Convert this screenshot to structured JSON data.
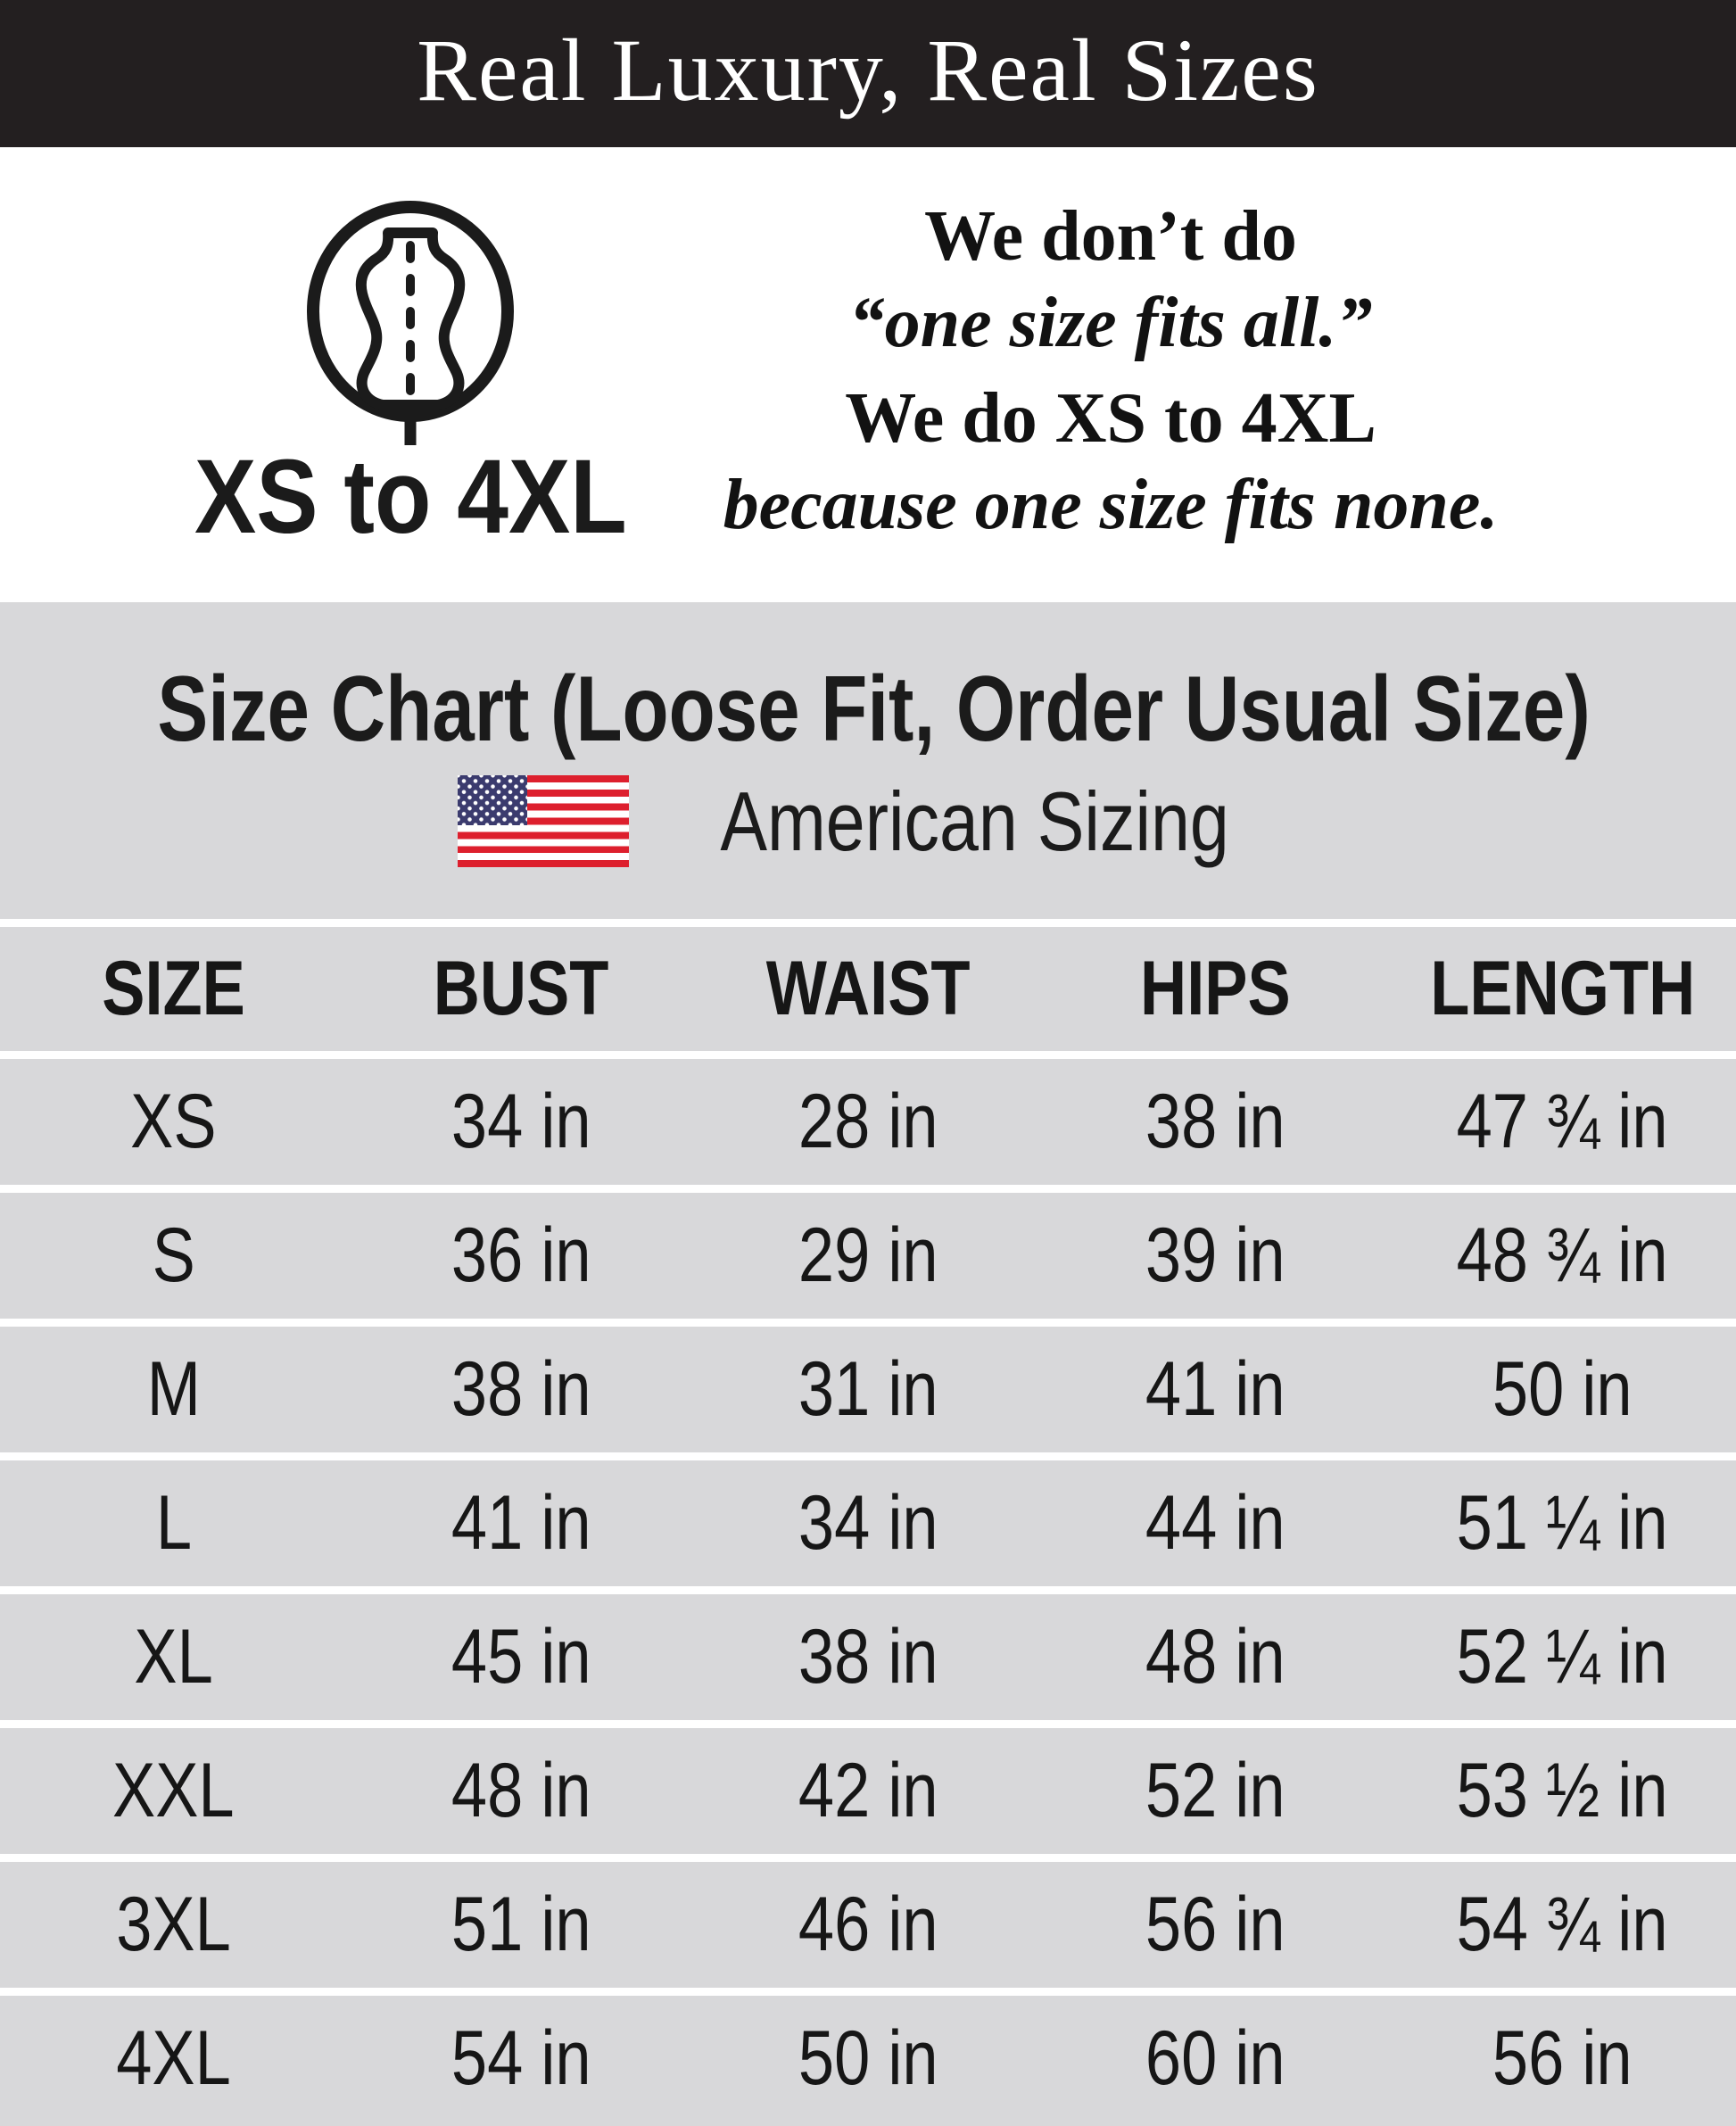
{
  "banner": {
    "title": "Real Luxury, Real Sizes"
  },
  "intro": {
    "icon": "dress-form-icon",
    "badge_label": "XS to 4XL",
    "lines": [
      {
        "text": "We don’t do",
        "style": "bold"
      },
      {
        "text": "“one size fits all.”",
        "style": "bold-italic"
      },
      {
        "text": "We do XS to 4XL",
        "style": "bold"
      },
      {
        "text": "because one size fits none.",
        "style": "bold-italic"
      }
    ]
  },
  "size_chart": {
    "flag_icon": "us-flag-icon",
    "sizing_label": "American Sizing"
  },
  "chart_data": {
    "type": "table",
    "title": "Size Chart (Loose Fit, Order Usual Size)",
    "columns": [
      "SIZE",
      "BUST",
      "WAIST",
      "HIPS",
      "LENGTH"
    ],
    "rows": [
      [
        "XS",
        "34 in",
        "28 in",
        "38 in",
        "47 ¾ in"
      ],
      [
        "S",
        "36 in",
        "29 in",
        "39 in",
        "48 ¾ in"
      ],
      [
        "M",
        "38 in",
        "31 in",
        "41 in",
        "50 in"
      ],
      [
        "L",
        "41 in",
        "34 in",
        "44 in",
        "51 ¼ in"
      ],
      [
        "XL",
        "45 in",
        "38 in",
        "48 in",
        "52 ¼ in"
      ],
      [
        "XXL",
        "48 in",
        "42 in",
        "52 in",
        "53 ½ in"
      ],
      [
        "3XL",
        "51 in",
        "46 in",
        "56 in",
        "54 ¾ in"
      ],
      [
        "4XL",
        "54 in",
        "50 in",
        "60 in",
        "56 in"
      ]
    ]
  },
  "colors": {
    "banner_bg": "#231f20",
    "section_bg": "#d8d8da",
    "flag_red": "#dd1f2d",
    "flag_blue": "#3b3b6e",
    "text": "#1b1b1b"
  }
}
